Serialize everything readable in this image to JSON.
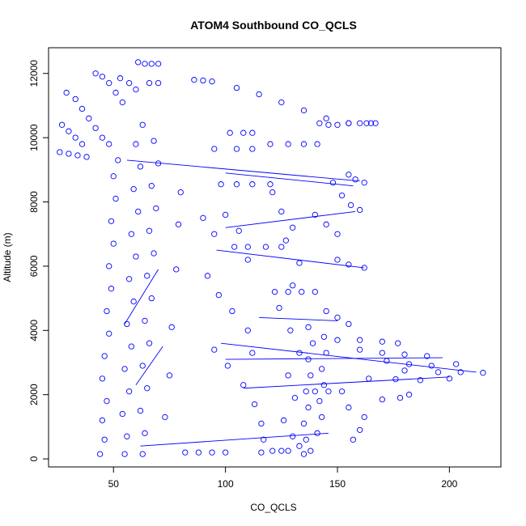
{
  "chart_data": {
    "type": "scatter",
    "title": "ATOM4 Southbound CO_QCLS",
    "xlabel": "CO_QCLS",
    "ylabel": "Altitude (m)",
    "xlim": [
      21,
      223
    ],
    "ylim": [
      -250,
      12800
    ],
    "x_ticks": [
      50,
      100,
      150,
      200
    ],
    "y_ticks": [
      0,
      2000,
      4000,
      6000,
      8000,
      10000,
      12000
    ],
    "grid": false,
    "marker": "open-circle",
    "color": "#0000ff",
    "series": [
      {
        "values": [
          [
            44,
            150
          ],
          [
            46,
            600
          ],
          [
            45,
            1200
          ],
          [
            47,
            1800
          ],
          [
            45,
            2500
          ],
          [
            46,
            3200
          ],
          [
            48,
            3900
          ],
          [
            47,
            4600
          ],
          [
            49,
            5300
          ],
          [
            48,
            6000
          ],
          [
            50,
            6700
          ],
          [
            49,
            7400
          ],
          [
            51,
            8100
          ],
          [
            50,
            8800
          ],
          [
            52,
            9300
          ],
          [
            55,
            150
          ],
          [
            56,
            700
          ],
          [
            54,
            1400
          ],
          [
            57,
            2100
          ],
          [
            55,
            2800
          ],
          [
            58,
            3500
          ],
          [
            56,
            4200
          ],
          [
            59,
            4900
          ],
          [
            57,
            5600
          ],
          [
            60,
            6300
          ],
          [
            58,
            7000
          ],
          [
            61,
            7700
          ],
          [
            59,
            8400
          ],
          [
            62,
            9100
          ],
          [
            60,
            9800
          ],
          [
            63,
            10400
          ],
          [
            63,
            150
          ],
          [
            64,
            800
          ],
          [
            62,
            1500
          ],
          [
            65,
            2200
          ],
          [
            63,
            2900
          ],
          [
            66,
            3600
          ],
          [
            64,
            4300
          ],
          [
            67,
            5000
          ],
          [
            65,
            5700
          ],
          [
            68,
            6400
          ],
          [
            66,
            7100
          ],
          [
            69,
            7800
          ],
          [
            67,
            8500
          ],
          [
            70,
            9200
          ],
          [
            68,
            9900
          ],
          [
            29,
            11400
          ],
          [
            33,
            11200
          ],
          [
            36,
            10900
          ],
          [
            39,
            10600
          ],
          [
            42,
            10300
          ],
          [
            45,
            10000
          ],
          [
            48,
            9800
          ],
          [
            27,
            10400
          ],
          [
            30,
            10200
          ],
          [
            33,
            10000
          ],
          [
            36,
            9800
          ],
          [
            26,
            9550
          ],
          [
            30,
            9500
          ],
          [
            34,
            9450
          ],
          [
            38,
            9400
          ],
          [
            42,
            12000
          ],
          [
            45,
            11900
          ],
          [
            48,
            11700
          ],
          [
            51,
            11400
          ],
          [
            54,
            11100
          ],
          [
            53,
            11850
          ],
          [
            57,
            11700
          ],
          [
            60,
            11500
          ],
          [
            61,
            12350
          ],
          [
            64,
            12300
          ],
          [
            67,
            12300
          ],
          [
            70,
            12300
          ],
          [
            66,
            11700
          ],
          [
            70,
            11700
          ],
          [
            82,
            200
          ],
          [
            88,
            200
          ],
          [
            94,
            200
          ],
          [
            100,
            200
          ],
          [
            73,
            1300
          ],
          [
            75,
            2600
          ],
          [
            76,
            4100
          ],
          [
            78,
            5900
          ],
          [
            79,
            7300
          ],
          [
            80,
            8300
          ],
          [
            86,
            11800
          ],
          [
            90,
            11780
          ],
          [
            94,
            11750
          ],
          [
            105,
            11550
          ],
          [
            115,
            11350
          ],
          [
            125,
            11100
          ],
          [
            135,
            10850
          ],
          [
            145,
            10600
          ],
          [
            155,
            10450
          ],
          [
            163,
            10450
          ],
          [
            95,
            9650
          ],
          [
            105,
            9650
          ],
          [
            112,
            9650
          ],
          [
            102,
            10150
          ],
          [
            108,
            10150
          ],
          [
            112,
            10150
          ],
          [
            120,
            9800
          ],
          [
            128,
            9800
          ],
          [
            135,
            9800
          ],
          [
            141,
            9800
          ],
          [
            98,
            8550
          ],
          [
            105,
            8550
          ],
          [
            112,
            8550
          ],
          [
            120,
            8550
          ],
          [
            104,
            6600
          ],
          [
            110,
            6600
          ],
          [
            118,
            6600
          ],
          [
            125,
            6600
          ],
          [
            122,
            5200
          ],
          [
            128,
            5200
          ],
          [
            134,
            5200
          ],
          [
            140,
            5200
          ],
          [
            140,
            2100
          ],
          [
            146,
            2100
          ],
          [
            152,
            2100
          ],
          [
            95,
            3400
          ],
          [
            101,
            2900
          ],
          [
            108,
            2300
          ],
          [
            113,
            1700
          ],
          [
            116,
            1100
          ],
          [
            117,
            600
          ],
          [
            116,
            200
          ],
          [
            92,
            5700
          ],
          [
            97,
            5100
          ],
          [
            103,
            4600
          ],
          [
            110,
            4000
          ],
          [
            112,
            3300
          ],
          [
            90,
            7500
          ],
          [
            95,
            7000
          ],
          [
            100,
            7600
          ],
          [
            106,
            7100
          ],
          [
            110,
            6200
          ],
          [
            121,
            8300
          ],
          [
            125,
            7700
          ],
          [
            130,
            7200
          ],
          [
            127,
            6800
          ],
          [
            133,
            6100
          ],
          [
            130,
            5400
          ],
          [
            124,
            4700
          ],
          [
            129,
            4000
          ],
          [
            133,
            3300
          ],
          [
            128,
            2600
          ],
          [
            131,
            1900
          ],
          [
            126,
            1200
          ],
          [
            130,
            700
          ],
          [
            125,
            250
          ],
          [
            135,
            150
          ],
          [
            136,
            600
          ],
          [
            135,
            1100
          ],
          [
            137,
            1600
          ],
          [
            136,
            2100
          ],
          [
            138,
            2600
          ],
          [
            137,
            3100
          ],
          [
            139,
            3600
          ],
          [
            137,
            4100
          ],
          [
            141,
            800
          ],
          [
            143,
            1300
          ],
          [
            142,
            1800
          ],
          [
            144,
            2300
          ],
          [
            143,
            2800
          ],
          [
            145,
            3300
          ],
          [
            144,
            3800
          ],
          [
            121,
            250
          ],
          [
            128,
            250
          ],
          [
            133,
            400
          ],
          [
            138,
            250
          ],
          [
            150,
            3700
          ],
          [
            160,
            3700
          ],
          [
            170,
            3650
          ],
          [
            177,
            3600
          ],
          [
            160,
            3400
          ],
          [
            170,
            3300
          ],
          [
            180,
            3250
          ],
          [
            190,
            3200
          ],
          [
            172,
            3050
          ],
          [
            182,
            2950
          ],
          [
            192,
            2900
          ],
          [
            203,
            2950
          ],
          [
            180,
            2750
          ],
          [
            195,
            2700
          ],
          [
            205,
            2700
          ],
          [
            215,
            2680
          ],
          [
            164,
            2500
          ],
          [
            176,
            2480
          ],
          [
            187,
            2450
          ],
          [
            200,
            2500
          ],
          [
            155,
            1600
          ],
          [
            162,
            1300
          ],
          [
            160,
            900
          ],
          [
            157,
            600
          ],
          [
            170,
            1850
          ],
          [
            178,
            1900
          ],
          [
            182,
            2000
          ],
          [
            148,
            8600
          ],
          [
            152,
            8200
          ],
          [
            156,
            7900
          ],
          [
            160,
            7750
          ],
          [
            155,
            8850
          ],
          [
            158,
            8700
          ],
          [
            162,
            8600
          ],
          [
            150,
            6200
          ],
          [
            155,
            6050
          ],
          [
            162,
            5950
          ],
          [
            140,
            7600
          ],
          [
            145,
            7300
          ],
          [
            150,
            7000
          ],
          [
            145,
            4600
          ],
          [
            150,
            4400
          ],
          [
            155,
            4200
          ],
          [
            155,
            10450
          ],
          [
            160,
            10450
          ],
          [
            165,
            10450
          ],
          [
            167,
            10450
          ],
          [
            142,
            10450
          ],
          [
            146,
            10400
          ],
          [
            150,
            10400
          ]
        ]
      }
    ],
    "segments": [
      [
        [
          56,
          9300
        ],
        [
          160,
          8650
        ]
      ],
      [
        [
          100,
          8900
        ],
        [
          157,
          8500
        ]
      ],
      [
        [
          98,
          3600
        ],
        [
          212,
          2700
        ]
      ],
      [
        [
          100,
          3100
        ],
        [
          197,
          3150
        ]
      ],
      [
        [
          108,
          2200
        ],
        [
          200,
          2550
        ]
      ],
      [
        [
          62,
          400
        ],
        [
          146,
          800
        ]
      ],
      [
        [
          100,
          7200
        ],
        [
          158,
          7700
        ]
      ],
      [
        [
          96,
          6500
        ],
        [
          162,
          5950
        ]
      ],
      [
        [
          115,
          4400
        ],
        [
          150,
          4300
        ]
      ],
      [
        [
          70,
          5900
        ],
        [
          55,
          4200
        ]
      ],
      [
        [
          72,
          3500
        ],
        [
          60,
          2300
        ]
      ]
    ]
  }
}
